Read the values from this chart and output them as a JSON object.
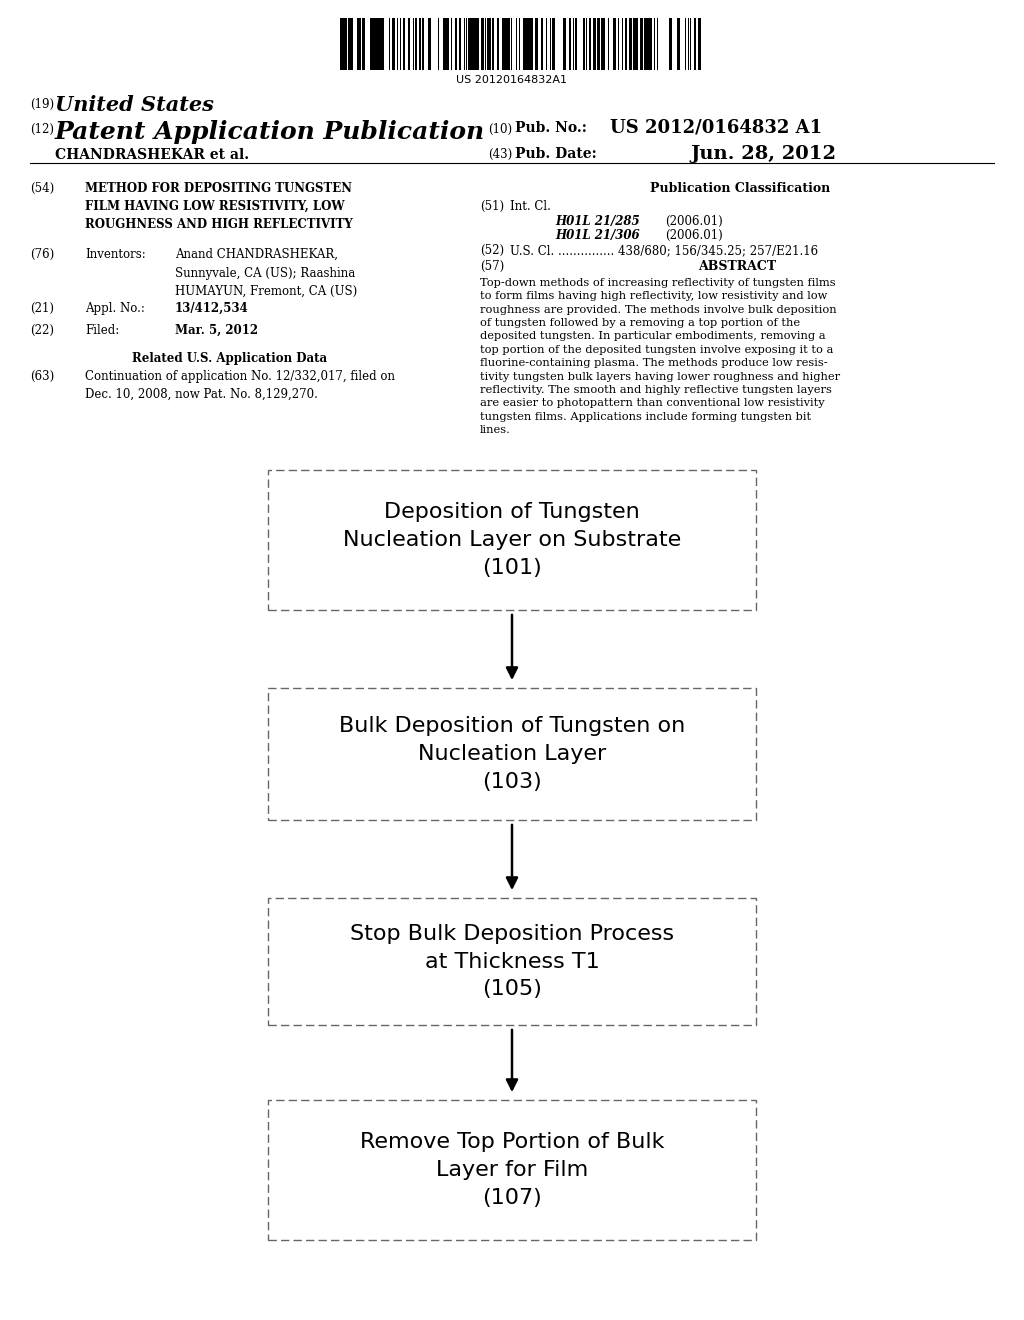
{
  "background_color": "#ffffff",
  "barcode_text": "US 20120164832A1",
  "box1_text": "Deposition of Tungsten\nNucleation Layer on Substrate\n(101)",
  "box2_text": "Bulk Deposition of Tungsten on\nNucleation Layer\n(103)",
  "box3_text": "Stop Bulk Deposition Process\nat Thickness T1\n(105)",
  "box4_text": "Remove Top Portion of Bulk\nLayer for Film\n(107)"
}
